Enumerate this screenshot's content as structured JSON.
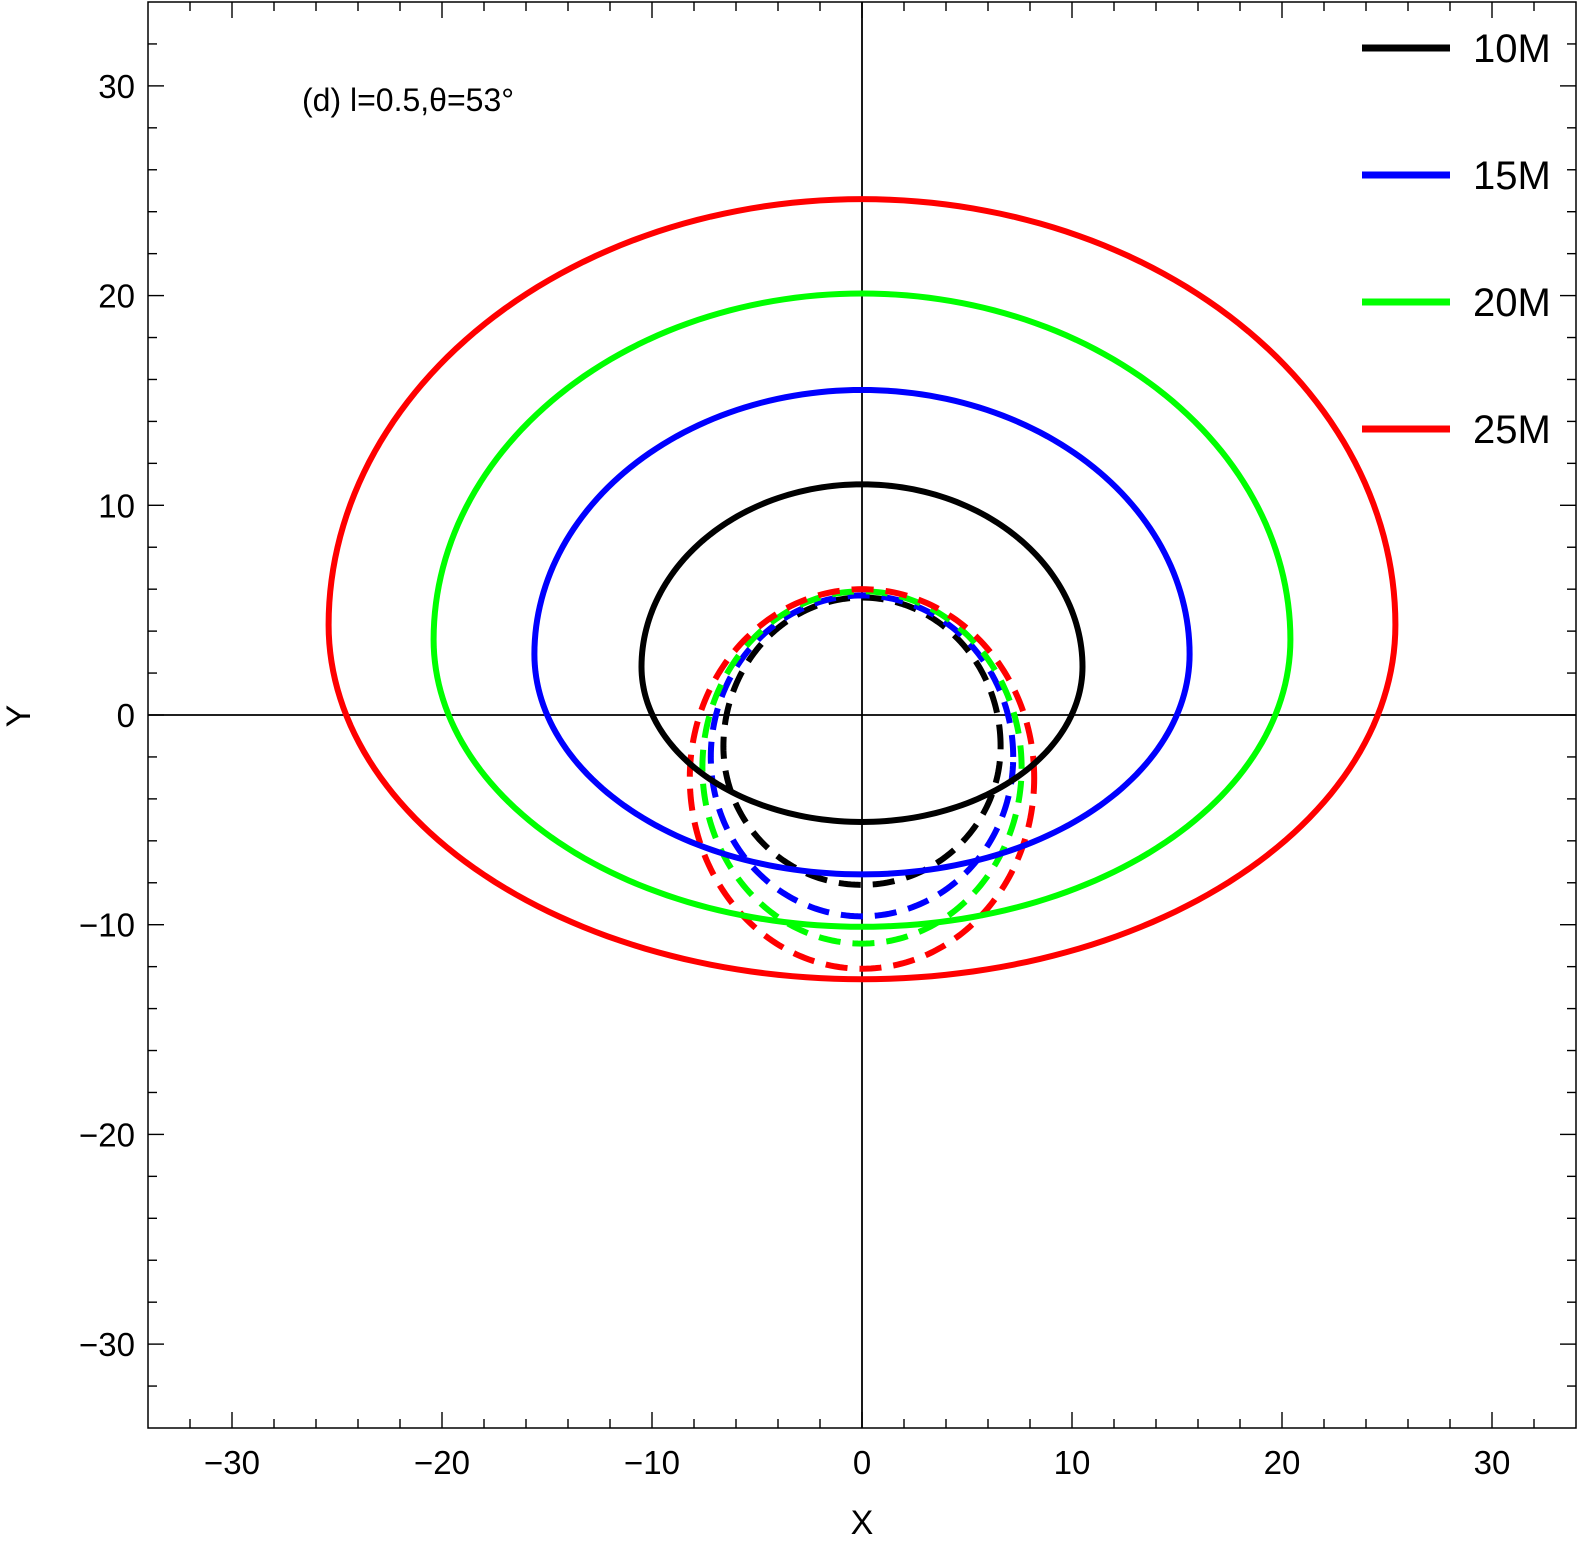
{
  "chart_data": {
    "type": "line",
    "annotation": "(d) l=0.5,θ=53°",
    "xlabel": "X",
    "ylabel": "Y",
    "xlim": [
      -34,
      34
    ],
    "ylim": [
      -34,
      34
    ],
    "xticks": [
      -30,
      -20,
      -10,
      0,
      10,
      20,
      30
    ],
    "yticks": [
      -30,
      -20,
      -10,
      0,
      10,
      20,
      30
    ],
    "tick_labels_x": [
      "−30",
      "−20",
      "−10",
      "0",
      "10",
      "20",
      "30"
    ],
    "tick_labels_y": [
      "−30",
      "−20",
      "−10",
      "0",
      "10",
      "20",
      "30"
    ],
    "grid": false,
    "legend_position": "top-right",
    "series": [
      {
        "name": "10M",
        "color": "#000000",
        "solid": {
          "xmin": -10.5,
          "xmax": 10.5,
          "ymin": -5.1,
          "ymax": 11.0,
          "x_extreme_y": 2.3
        },
        "dashed": {
          "xmin": -6.6,
          "xmax": 6.6,
          "ymin": -8.1,
          "ymax": 5.6,
          "x_extreme_y": -1.5
        }
      },
      {
        "name": "15M",
        "color": "#0000ff",
        "solid": {
          "xmin": -15.6,
          "xmax": 15.6,
          "ymin": -7.6,
          "ymax": 15.5,
          "x_extreme_y": 2.9
        },
        "dashed": {
          "xmin": -7.2,
          "xmax": 7.2,
          "ymin": -9.6,
          "ymax": 5.7,
          "x_extreme_y": -2.0
        }
      },
      {
        "name": "20M",
        "color": "#00ff00",
        "solid": {
          "xmin": -20.4,
          "xmax": 20.4,
          "ymin": -10.1,
          "ymax": 20.1,
          "x_extreme_y": 3.6
        },
        "dashed": {
          "xmin": -7.6,
          "xmax": 7.6,
          "ymin": -10.9,
          "ymax": 5.9,
          "x_extreme_y": -2.5
        }
      },
      {
        "name": "25M",
        "color": "#ff0000",
        "solid": {
          "xmin": -25.4,
          "xmax": 25.4,
          "ymin": -12.6,
          "ymax": 24.6,
          "x_extreme_y": 4.3
        },
        "dashed": {
          "xmin": -8.2,
          "xmax": 8.2,
          "ymin": -12.1,
          "ymax": 6.0,
          "x_extreme_y": -3.0
        }
      }
    ]
  }
}
